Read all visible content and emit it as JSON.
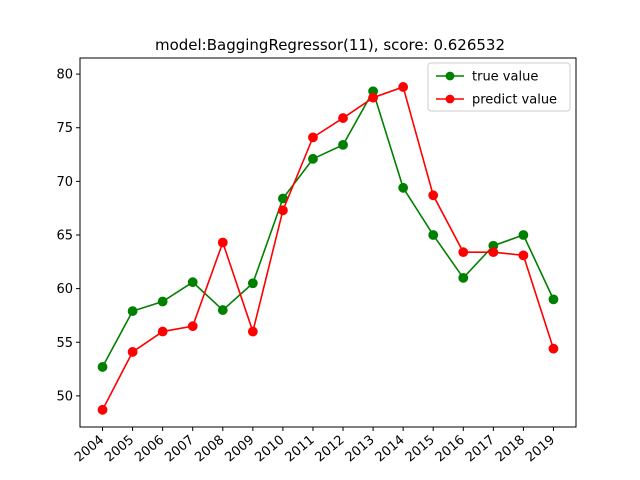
{
  "chart_data": {
    "type": "line",
    "title": "model:BaggingRegressor(11), score: 0.626532",
    "xlabel": "",
    "ylabel": "",
    "categories": [
      "2004",
      "2005",
      "2006",
      "2007",
      "2008",
      "2009",
      "2010",
      "2011",
      "2012",
      "2013",
      "2014",
      "2015",
      "2016",
      "2017",
      "2018",
      "2019"
    ],
    "yticks": [
      50,
      55,
      60,
      65,
      70,
      75,
      80
    ],
    "ylim": [
      47.1,
      81.5
    ],
    "grid": false,
    "legend_position": "top-right",
    "series": [
      {
        "name": "true value",
        "color": "#008000",
        "values": [
          52.7,
          57.9,
          58.8,
          60.6,
          58.0,
          60.5,
          68.4,
          72.1,
          73.4,
          78.4,
          69.4,
          65.0,
          61.0,
          64.0,
          65.0,
          59.0
        ]
      },
      {
        "name": "predict value",
        "color": "#ff0000",
        "values": [
          48.7,
          54.1,
          56.0,
          56.5,
          64.3,
          56.0,
          67.3,
          74.1,
          75.9,
          77.8,
          78.8,
          68.7,
          63.4,
          63.4,
          63.1,
          54.4
        ]
      }
    ]
  }
}
